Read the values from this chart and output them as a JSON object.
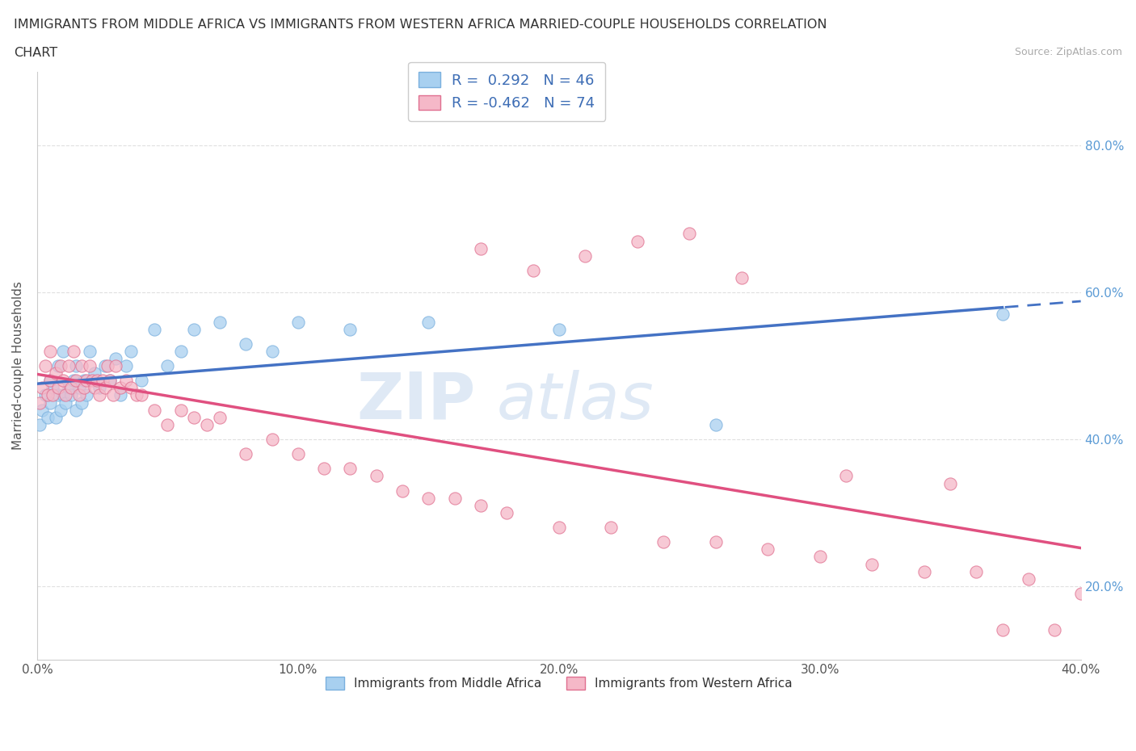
{
  "title_line1": "IMMIGRANTS FROM MIDDLE AFRICA VS IMMIGRANTS FROM WESTERN AFRICA MARRIED-COUPLE HOUSEHOLDS CORRELATION",
  "title_line2": "CHART",
  "source": "Source: ZipAtlas.com",
  "ylabel": "Married-couple Households",
  "xlim": [
    0.0,
    0.4
  ],
  "ylim": [
    0.1,
    0.9
  ],
  "xtick_labels": [
    "0.0%",
    "10.0%",
    "20.0%",
    "30.0%",
    "40.0%"
  ],
  "xtick_values": [
    0.0,
    0.1,
    0.2,
    0.3,
    0.4
  ],
  "ytick_labels": [
    "20.0%",
    "40.0%",
    "60.0%",
    "80.0%"
  ],
  "ytick_values": [
    0.2,
    0.4,
    0.6,
    0.8
  ],
  "blue_color": "#a8d0f0",
  "blue_edge": "#7ab0de",
  "pink_color": "#f5b8c8",
  "pink_edge": "#e07090",
  "line_blue": "#4472c4",
  "line_pink": "#e05080",
  "R_blue": 0.292,
  "N_blue": 46,
  "R_pink": -0.462,
  "N_pink": 74,
  "legend_label_blue": "Immigrants from Middle Africa",
  "legend_label_pink": "Immigrants from Western Africa",
  "watermark_zip": "ZIP",
  "watermark_atlas": "atlas",
  "background_color": "#ffffff",
  "grid_color": "#e0e0e0",
  "blue_scatter_x": [
    0.001,
    0.002,
    0.003,
    0.004,
    0.005,
    0.005,
    0.006,
    0.007,
    0.008,
    0.008,
    0.009,
    0.01,
    0.01,
    0.011,
    0.012,
    0.013,
    0.014,
    0.015,
    0.015,
    0.016,
    0.017,
    0.018,
    0.019,
    0.02,
    0.022,
    0.024,
    0.026,
    0.028,
    0.03,
    0.032,
    0.034,
    0.036,
    0.04,
    0.045,
    0.05,
    0.055,
    0.06,
    0.07,
    0.08,
    0.09,
    0.1,
    0.12,
    0.15,
    0.2,
    0.26,
    0.37
  ],
  "blue_scatter_y": [
    0.42,
    0.44,
    0.46,
    0.43,
    0.45,
    0.48,
    0.47,
    0.43,
    0.46,
    0.5,
    0.44,
    0.46,
    0.52,
    0.45,
    0.47,
    0.46,
    0.48,
    0.44,
    0.5,
    0.47,
    0.45,
    0.48,
    0.46,
    0.52,
    0.49,
    0.47,
    0.5,
    0.48,
    0.51,
    0.46,
    0.5,
    0.52,
    0.48,
    0.55,
    0.5,
    0.52,
    0.55,
    0.56,
    0.53,
    0.52,
    0.56,
    0.55,
    0.56,
    0.55,
    0.42,
    0.57
  ],
  "pink_scatter_x": [
    0.001,
    0.002,
    0.003,
    0.004,
    0.005,
    0.005,
    0.006,
    0.007,
    0.008,
    0.009,
    0.01,
    0.011,
    0.012,
    0.013,
    0.014,
    0.015,
    0.016,
    0.017,
    0.018,
    0.019,
    0.02,
    0.021,
    0.022,
    0.023,
    0.024,
    0.025,
    0.026,
    0.027,
    0.028,
    0.029,
    0.03,
    0.032,
    0.034,
    0.036,
    0.038,
    0.04,
    0.045,
    0.05,
    0.055,
    0.06,
    0.065,
    0.07,
    0.08,
    0.09,
    0.1,
    0.11,
    0.12,
    0.13,
    0.14,
    0.15,
    0.16,
    0.17,
    0.18,
    0.2,
    0.22,
    0.24,
    0.26,
    0.28,
    0.3,
    0.32,
    0.34,
    0.36,
    0.38,
    0.4,
    0.17,
    0.19,
    0.21,
    0.23,
    0.25,
    0.27,
    0.31,
    0.35,
    0.37,
    0.39
  ],
  "pink_scatter_y": [
    0.45,
    0.47,
    0.5,
    0.46,
    0.48,
    0.52,
    0.46,
    0.49,
    0.47,
    0.5,
    0.48,
    0.46,
    0.5,
    0.47,
    0.52,
    0.48,
    0.46,
    0.5,
    0.47,
    0.48,
    0.5,
    0.48,
    0.47,
    0.48,
    0.46,
    0.48,
    0.47,
    0.5,
    0.48,
    0.46,
    0.5,
    0.47,
    0.48,
    0.47,
    0.46,
    0.46,
    0.44,
    0.42,
    0.44,
    0.43,
    0.42,
    0.43,
    0.38,
    0.4,
    0.38,
    0.36,
    0.36,
    0.35,
    0.33,
    0.32,
    0.32,
    0.31,
    0.3,
    0.28,
    0.28,
    0.26,
    0.26,
    0.25,
    0.24,
    0.23,
    0.22,
    0.22,
    0.21,
    0.19,
    0.66,
    0.63,
    0.65,
    0.67,
    0.68,
    0.62,
    0.35,
    0.34,
    0.14,
    0.14
  ]
}
